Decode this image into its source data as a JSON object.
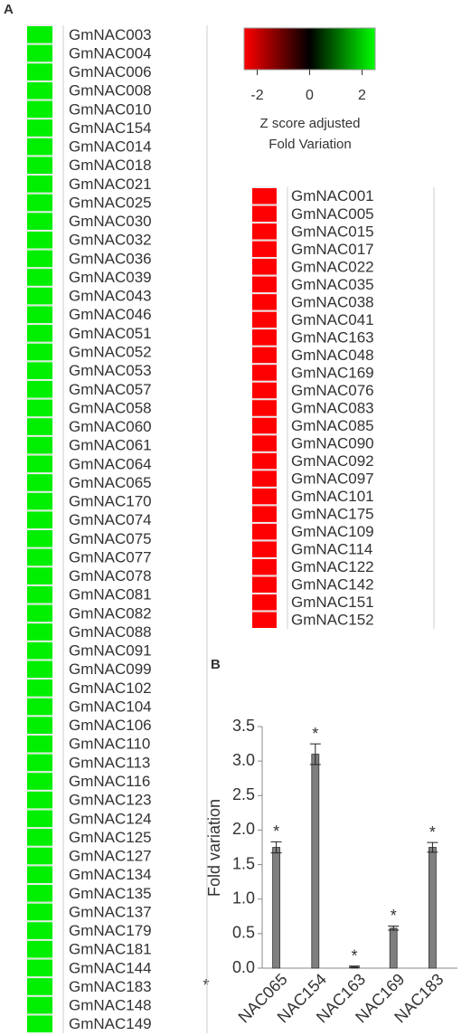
{
  "panel_labels": [
    "A",
    "B"
  ],
  "colorbar": {
    "ticks": [
      -2,
      0,
      2
    ],
    "lim": [
      -2.5,
      2.5
    ],
    "colors": [
      "#ff0000",
      "#000000",
      "#00ff00"
    ],
    "label_lines": [
      "Z score adjusted",
      "Fold Variation"
    ]
  },
  "left_list": {
    "color": "#00ee00",
    "genes": [
      "GmNAC003",
      "GmNAC004",
      "GmNAC006",
      "GmNAC008",
      "GmNAC010",
      "GmNAC154",
      "GmNAC014",
      "GmNAC018",
      "GmNAC021",
      "GmNAC025",
      "GmNAC030",
      "GmNAC032",
      "GmNAC036",
      "GmNAC039",
      "GmNAC043",
      "GmNAC046",
      "GmNAC051",
      "GmNAC052",
      "GmNAC053",
      "GmNAC057",
      "GmNAC058",
      "GmNAC060",
      "GmNAC061",
      "GmNAC064",
      "GmNAC065",
      "GmNAC170",
      "GmNAC074",
      "GmNAC075",
      "GmNAC077",
      "GmNAC078",
      "GmNAC081",
      "GmNAC082",
      "GmNAC088",
      "GmNAC091",
      "GmNAC099",
      "GmNAC102",
      "GmNAC104",
      "GmNAC106",
      "GmNAC110",
      "GmNAC113",
      "GmNAC116",
      "GmNAC123",
      "GmNAC124",
      "GmNAC125",
      "GmNAC127",
      "GmNAC134",
      "GmNAC135",
      "GmNAC137",
      "GmNAC179",
      "GmNAC181",
      "GmNAC144",
      "GmNAC183",
      "GmNAC148",
      "GmNAC149"
    ]
  },
  "right_list": {
    "color": "#ff0000",
    "genes": [
      "GmNAC001",
      "GmNAC005",
      "GmNAC015",
      "GmNAC017",
      "GmNAC022",
      "GmNAC035",
      "GmNAC038",
      "GmNAC041",
      "GmNAC163",
      "GmNAC048",
      "GmNAC169",
      "GmNAC076",
      "GmNAC083",
      "GmNAC085",
      "GmNAC090",
      "GmNAC092",
      "GmNAC097",
      "GmNAC101",
      "GmNAC175",
      "GmNAC109",
      "GmNAC114",
      "GmNAC122",
      "GmNAC142",
      "GmNAC151",
      "GmNAC152"
    ]
  },
  "chart_data": {
    "type": "bar",
    "ylabel": "Fold variation",
    "categories": [
      "NAC065",
      "NAC154",
      "NAC163",
      "NAC169",
      "NAC183"
    ],
    "values": [
      1.75,
      3.1,
      0.02,
      0.58,
      1.75
    ],
    "errors": [
      0.08,
      0.15,
      0.01,
      0.03,
      0.07
    ],
    "significance": [
      "*",
      "*",
      "*",
      "*",
      "*"
    ],
    "annotation": "*",
    "color": "#7f7f7f",
    "ylim": [
      0,
      3.5
    ],
    "yticks": [
      {
        "value": 0,
        "label": "0.0"
      },
      {
        "value": 0.5,
        "label": "0.5"
      },
      {
        "value": 1,
        "label": "1.0"
      },
      {
        "value": 1.5,
        "label": "1.5"
      },
      {
        "value": 2,
        "label": "2.0"
      },
      {
        "value": 2.5,
        "label": "2.5"
      },
      {
        "value": 3,
        "label": "3.0"
      },
      {
        "value": 3.5,
        "label": "3.5"
      }
    ]
  }
}
